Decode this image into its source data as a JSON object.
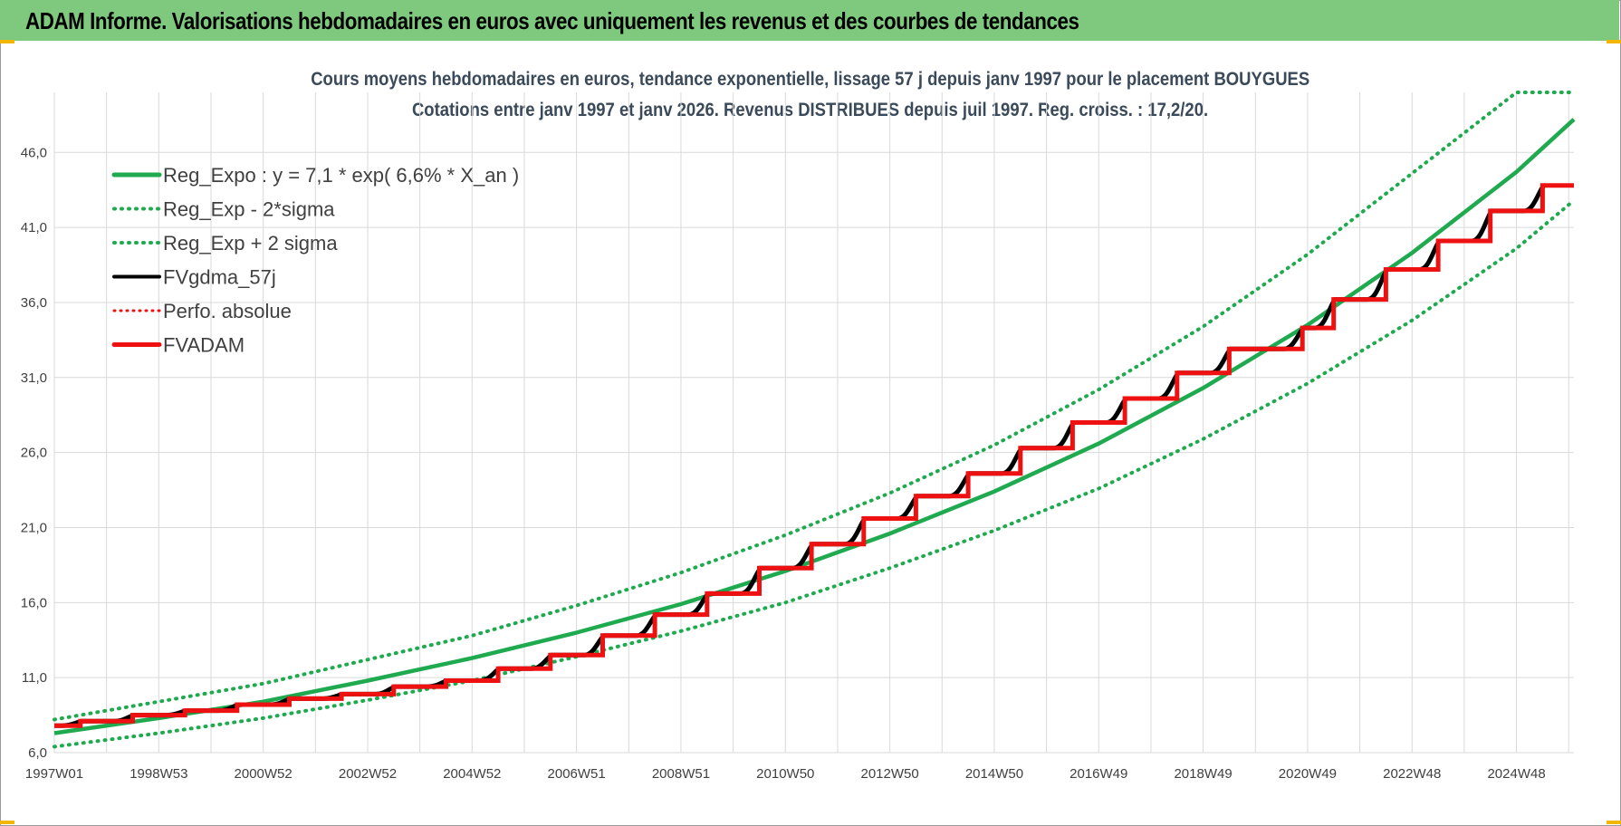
{
  "banner": {
    "title": "ADAM Informe. Valorisations hebdomadaires en euros avec uniquement les revenus et des courbes de tendances"
  },
  "colors": {
    "banner_bg": "#7fc97f",
    "green": "#1faa4f",
    "red": "#ee1111",
    "black": "#000000"
  },
  "chart_data": {
    "type": "line",
    "title": "Cours moyens hebdomadaires en euros, tendance exponentielle, lissage 57 j depuis janv 1997 pour le placement BOUYGUES",
    "subtitle": "Cotations entre janv 1997 et janv 2026. Revenus DISTRIBUES depuis juil 1997. Reg. croiss. : 17,2/20.",
    "x_tick_labels": [
      "1997W01",
      "1998W53",
      "2000W52",
      "2002W52",
      "2004W52",
      "2006W51",
      "2008W51",
      "2010W50",
      "2012W50",
      "2014W50",
      "2016W49",
      "2018W49",
      "2020W49",
      "2022W48",
      "2024W48"
    ],
    "x_tick_years": [
      1997.0,
      1999.0,
      2001.0,
      2003.0,
      2005.0,
      2007.0,
      2009.0,
      2011.0,
      2013.0,
      2015.0,
      2017.0,
      2019.0,
      2021.0,
      2023.0,
      2025.0
    ],
    "xlim": [
      1997.0,
      2026.1
    ],
    "y_tick_labels": [
      "6,0",
      "11,0",
      "16,0",
      "21,0",
      "26,0",
      "31,0",
      "36,0",
      "41,0",
      "46,0"
    ],
    "y_ticks": [
      6,
      11,
      16,
      21,
      26,
      31,
      36,
      41,
      46
    ],
    "ylim": [
      6,
      50
    ],
    "grid": true,
    "legend_position": "top-left",
    "series": [
      {
        "name": "Reg_Expo : y = 7,1 * exp( 6,6% *  X_an )",
        "style": "solid-green-thick",
        "x": [
          1997,
          1999,
          2001,
          2003,
          2005,
          2007,
          2009,
          2011,
          2013,
          2015,
          2017,
          2019,
          2021,
          2023,
          2025,
          2026.1
        ],
        "y": [
          7.3,
          8.3,
          9.4,
          10.8,
          12.3,
          14.0,
          15.9,
          18.1,
          20.6,
          23.4,
          26.6,
          30.3,
          34.5,
          39.3,
          44.7,
          48.2
        ]
      },
      {
        "name": "Reg_Exp - 2*sigma",
        "style": "dotted-green",
        "x": [
          1997,
          1999,
          2001,
          2003,
          2005,
          2007,
          2009,
          2011,
          2013,
          2015,
          2017,
          2019,
          2021,
          2023,
          2025,
          2026.1
        ],
        "y": [
          6.4,
          7.3,
          8.3,
          9.5,
          10.8,
          12.4,
          14.1,
          16.0,
          18.3,
          20.8,
          23.6,
          26.9,
          30.6,
          34.8,
          39.6,
          42.8
        ]
      },
      {
        "name": "Reg_Exp + 2 sigma",
        "style": "dotted-green",
        "x": [
          1997,
          1999,
          2001,
          2003,
          2005,
          2007,
          2009,
          2011,
          2013,
          2015,
          2017,
          2019,
          2021,
          2023,
          2025,
          2025.1,
          2026.1
        ],
        "y": [
          8.2,
          9.4,
          10.6,
          12.2,
          13.8,
          15.8,
          18.0,
          20.5,
          23.3,
          26.5,
          30.2,
          34.4,
          39.2,
          44.6,
          50.0,
          50.0,
          50.0
        ]
      },
      {
        "name": "FVgdma_57j",
        "style": "solid-black"
      },
      {
        "name": "Perfo. absolue",
        "style": "dotted-red"
      },
      {
        "name": "FVADAM",
        "style": "solid-red-thick",
        "step_x": [
          1997.0,
          1997.5,
          1998.5,
          1999.5,
          2000.5,
          2001.5,
          2002.5,
          2003.5,
          2004.5,
          2005.5,
          2006.5,
          2007.5,
          2008.5,
          2009.5,
          2010.5,
          2011.5,
          2012.5,
          2013.5,
          2014.5,
          2015.5,
          2016.5,
          2017.5,
          2018.5,
          2019.5,
          2020.5,
          2020.9,
          2021.5,
          2022.5,
          2023.5,
          2024.5,
          2025.5
        ],
        "step_y": [
          7.8,
          8.1,
          8.5,
          8.8,
          9.2,
          9.6,
          9.9,
          10.4,
          10.8,
          11.6,
          12.5,
          13.8,
          15.2,
          16.6,
          18.3,
          19.9,
          21.6,
          23.1,
          24.6,
          26.3,
          28.0,
          29.6,
          31.3,
          32.9,
          32.9,
          34.3,
          36.2,
          38.2,
          40.1,
          42.1,
          43.8
        ],
        "x_end": 2026.1
      }
    ]
  }
}
